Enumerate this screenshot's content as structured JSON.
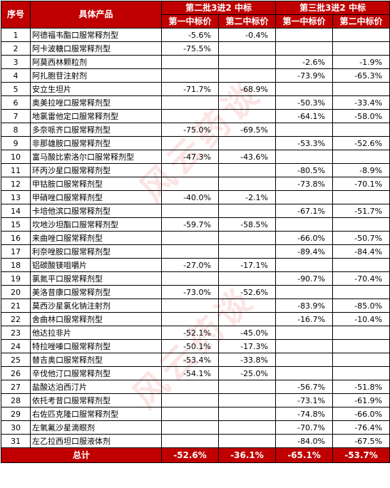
{
  "header": {
    "seq": "序号",
    "product": "具体产品",
    "group2": "第二批3进2 中标",
    "group3": "第三批3进2 中标",
    "sub1": "第一中标价",
    "sub2": "第二中标价",
    "sub3": "第一中标价",
    "sub4": "第二中标价"
  },
  "rows": [
    {
      "n": "1",
      "name": "阿德福韦酯口服常释剂型",
      "b2a": "-5.6%",
      "b2b": "-0.4%",
      "b3a": "",
      "b3b": ""
    },
    {
      "n": "2",
      "name": "阿卡波糖口服常释剂型",
      "b2a": "-75.5%",
      "b2b": "",
      "b3a": "",
      "b3b": ""
    },
    {
      "n": "3",
      "name": "阿莫西林颗粒剂",
      "b2a": "",
      "b2b": "",
      "b3a": "-2.6%",
      "b3b": "-1.9%"
    },
    {
      "n": "4",
      "name": "阿扎胞苷注射剂",
      "b2a": "",
      "b2b": "",
      "b3a": "-73.9%",
      "b3b": "-65.3%"
    },
    {
      "n": "5",
      "name": "安立生坦片",
      "b2a": "-71.7%",
      "b2b": "-68.9%",
      "b3a": "",
      "b3b": ""
    },
    {
      "n": "6",
      "name": "奥美拉唑口服常释剂型",
      "b2a": "",
      "b2b": "",
      "b3a": "-50.3%",
      "b3b": "-33.4%"
    },
    {
      "n": "7",
      "name": "地氯雷他定口服常释剂型",
      "b2a": "",
      "b2b": "",
      "b3a": "-64.1%",
      "b3b": "-58.0%"
    },
    {
      "n": "8",
      "name": "多奈哌齐口服常释剂型",
      "b2a": "-75.0%",
      "b2b": "-69.5%",
      "b3a": "",
      "b3b": ""
    },
    {
      "n": "9",
      "name": "非那雄胺口服常释剂型",
      "b2a": "",
      "b2b": "",
      "b3a": "-53.3%",
      "b3b": "-52.6%"
    },
    {
      "n": "10",
      "name": "富马酸比索洛尔口服常释剂型",
      "b2a": "-47.3%",
      "b2b": "-43.6%",
      "b3a": "",
      "b3b": ""
    },
    {
      "n": "11",
      "name": "环丙沙星口服常释剂型",
      "b2a": "",
      "b2b": "",
      "b3a": "-80.5%",
      "b3b": "-8.9%"
    },
    {
      "n": "12",
      "name": "甲钴胺口服常释剂型",
      "b2a": "",
      "b2b": "",
      "b3a": "-73.8%",
      "b3b": "-70.1%"
    },
    {
      "n": "13",
      "name": "甲硝唑口服常释剂型",
      "b2a": "-40.0%",
      "b2b": "-2.1%",
      "b3a": "",
      "b3b": ""
    },
    {
      "n": "14",
      "name": "卡培他滨口服常释剂型",
      "b2a": "",
      "b2b": "",
      "b3a": "-67.1%",
      "b3b": "-51.7%"
    },
    {
      "n": "15",
      "name": "坎地沙坦酯口服常释剂型",
      "b2a": "-59.7%",
      "b2b": "-58.5%",
      "b3a": "",
      "b3b": ""
    },
    {
      "n": "16",
      "name": "来曲唑口服常释剂型",
      "b2a": "",
      "b2b": "",
      "b3a": "-66.0%",
      "b3b": "-50.7%"
    },
    {
      "n": "17",
      "name": "利奈唑胺口服常释剂型",
      "b2a": "",
      "b2b": "",
      "b3a": "-89.4%",
      "b3b": "-84.4%"
    },
    {
      "n": "18",
      "name": "铝碳酸镁咀嚼片",
      "b2a": "-27.0%",
      "b2b": "-17.1%",
      "b3a": "",
      "b3b": ""
    },
    {
      "n": "19",
      "name": "氯氮平口服常释剂型",
      "b2a": "",
      "b2b": "",
      "b3a": "-90.7%",
      "b3b": "-70.4%"
    },
    {
      "n": "20",
      "name": "美洛昔康口服常释剂型",
      "b2a": "-73.0%",
      "b2b": "-52.6%",
      "b3a": "",
      "b3b": ""
    },
    {
      "n": "21",
      "name": "莫西沙星氯化钠注射剂",
      "b2a": "",
      "b2b": "",
      "b3a": "-83.9%",
      "b3b": "-85.0%"
    },
    {
      "n": "22",
      "name": "舍曲林口服常释剂型",
      "b2a": "",
      "b2b": "",
      "b3a": "-16.7%",
      "b3b": "-10.4%"
    },
    {
      "n": "23",
      "name": "他达拉非片",
      "b2a": "-52.1%",
      "b2b": "-45.0%",
      "b3a": "",
      "b3b": ""
    },
    {
      "n": "24",
      "name": "特拉唑嗪口服常释剂型",
      "b2a": "-50.1%",
      "b2b": "-17.3%",
      "b3a": "",
      "b3b": ""
    },
    {
      "n": "25",
      "name": "替吉奥口服常释剂型",
      "b2a": "-53.4%",
      "b2b": "-33.8%",
      "b3a": "",
      "b3b": ""
    },
    {
      "n": "26",
      "name": "辛伐他汀口服常释剂型",
      "b2a": "-54.1%",
      "b2b": "-25.0%",
      "b3a": "",
      "b3b": ""
    },
    {
      "n": "27",
      "name": "盐酸达泊西汀片",
      "b2a": "",
      "b2b": "",
      "b3a": "-56.7%",
      "b3b": "-51.8%"
    },
    {
      "n": "28",
      "name": "依托考昔口服常释剂型",
      "b2a": "",
      "b2b": "",
      "b3a": "-73.1%",
      "b3b": "-61.9%"
    },
    {
      "n": "29",
      "name": "右佐匹克隆口服常释剂型",
      "b2a": "",
      "b2b": "",
      "b3a": "-74.8%",
      "b3b": "-66.0%"
    },
    {
      "n": "30",
      "name": "左氧氟沙星滴眼剂",
      "b2a": "",
      "b2b": "",
      "b3a": "-70.7%",
      "b3b": "-76.4%"
    },
    {
      "n": "31",
      "name": "左乙拉西坦口服液体剂",
      "b2a": "",
      "b2b": "",
      "b3a": "-84.0%",
      "b3b": "-67.5%"
    }
  ],
  "total": {
    "label": "总计",
    "b2a": "-52.6%",
    "b2b": "-36.1%",
    "b3a": "-65.1%",
    "b3b": "-53.7%"
  },
  "watermark": {
    "text": "风云药谈"
  },
  "colors": {
    "header_bg": "#c00000",
    "header_text": "#ffffff"
  }
}
